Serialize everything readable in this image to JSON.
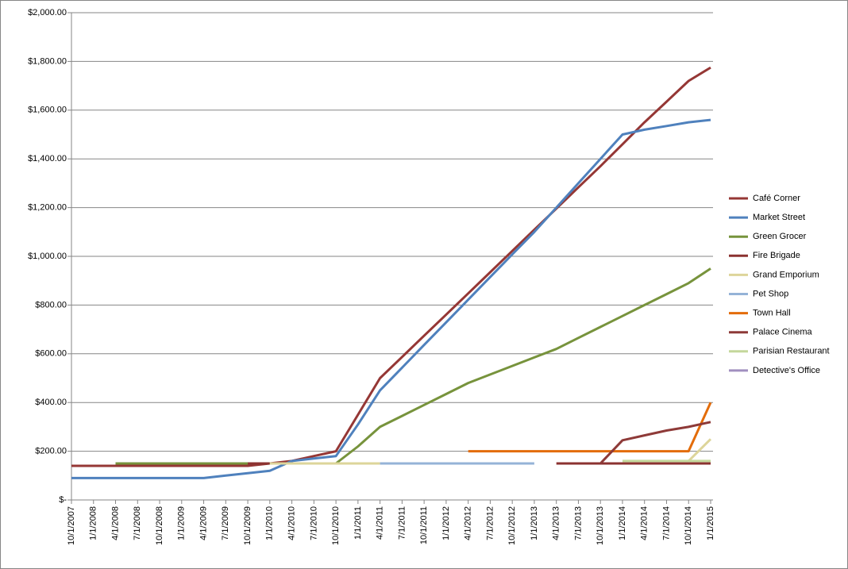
{
  "chart_data": {
    "type": "line",
    "categories": [
      "10/1/2007",
      "1/1/2008",
      "4/1/2008",
      "7/1/2008",
      "10/1/2008",
      "1/1/2009",
      "4/1/2009",
      "7/1/2009",
      "10/1/2009",
      "1/1/2010",
      "4/1/2010",
      "7/1/2010",
      "10/1/2010",
      "1/1/2011",
      "4/1/2011",
      "7/1/2011",
      "10/1/2011",
      "1/1/2012",
      "4/1/2012",
      "7/1/2012",
      "10/1/2012",
      "1/1/2013",
      "4/1/2013",
      "7/1/2013",
      "10/1/2013",
      "1/1/2014",
      "4/1/2014",
      "7/1/2014",
      "10/1/2014",
      "1/1/2015"
    ],
    "ylim": [
      0,
      2000
    ],
    "yticks": [
      {
        "value": 0,
        "label": "$-"
      },
      {
        "value": 200,
        "label": "$200.00"
      },
      {
        "value": 400,
        "label": "$400.00"
      },
      {
        "value": 600,
        "label": "$600.00"
      },
      {
        "value": 800,
        "label": "$800.00"
      },
      {
        "value": 1000,
        "label": "$1,000.00"
      },
      {
        "value": 1200,
        "label": "$1,200.00"
      },
      {
        "value": 1400,
        "label": "$1,400.00"
      },
      {
        "value": 1600,
        "label": "$1,600.00"
      },
      {
        "value": 1800,
        "label": "$1,800.00"
      },
      {
        "value": 2000,
        "label": "$2,000.00"
      }
    ],
    "grid": true,
    "legend": "right",
    "series": [
      {
        "name": "Café Corner",
        "color": "#953735",
        "values": [
          140,
          140,
          140,
          140,
          140,
          140,
          140,
          140,
          140,
          150,
          160,
          180,
          200,
          350,
          500,
          587,
          674,
          761,
          848,
          935,
          1022,
          1109,
          1196,
          1283,
          1370,
          1460,
          1550,
          1635,
          1720,
          1775
        ]
      },
      {
        "name": "Market Street",
        "color": "#4f81bd",
        "values": [
          90,
          90,
          90,
          90,
          90,
          90,
          90,
          100,
          110,
          120,
          160,
          170,
          180,
          310,
          450,
          543,
          636,
          729,
          822,
          915,
          1008,
          1100,
          1200,
          1300,
          1400,
          1500,
          1520,
          1535,
          1550,
          1560
        ]
      },
      {
        "name": "Green Grocer",
        "color": "#77933c",
        "values": [
          null,
          null,
          150,
          150,
          150,
          150,
          150,
          150,
          150,
          150,
          150,
          150,
          150,
          220,
          300,
          345,
          390,
          435,
          480,
          515,
          550,
          585,
          620,
          665,
          710,
          755,
          800,
          845,
          890,
          950
        ]
      },
      {
        "name": "Fire Brigade",
        "color": "#8b3230",
        "values": [
          null,
          null,
          null,
          null,
          null,
          null,
          null,
          null,
          150,
          150,
          null,
          null,
          null,
          null,
          null,
          null,
          null,
          null,
          null,
          null,
          null,
          null,
          150,
          150,
          150,
          150,
          150,
          150,
          150,
          150
        ]
      },
      {
        "name": "Grand Emporium",
        "color": "#ddd59a",
        "values": [
          null,
          null,
          null,
          null,
          null,
          null,
          null,
          null,
          null,
          150,
          150,
          150,
          150,
          150,
          150,
          null,
          null,
          null,
          null,
          null,
          null,
          null,
          null,
          null,
          null,
          null,
          null,
          null,
          160,
          250
        ]
      },
      {
        "name": "Pet Shop",
        "color": "#95b3d7",
        "values": [
          null,
          null,
          null,
          null,
          null,
          null,
          null,
          null,
          null,
          null,
          null,
          null,
          null,
          null,
          150,
          150,
          150,
          150,
          150,
          150,
          150,
          150,
          null,
          null,
          null,
          null,
          null,
          null,
          null,
          null
        ]
      },
      {
        "name": "Town Hall",
        "color": "#e36c09",
        "values": [
          null,
          null,
          null,
          null,
          null,
          null,
          null,
          null,
          null,
          null,
          null,
          null,
          null,
          null,
          null,
          null,
          null,
          null,
          200,
          200,
          200,
          200,
          200,
          200,
          200,
          200,
          200,
          200,
          200,
          400
        ]
      },
      {
        "name": "Palace Cinema",
        "color": "#8e3a38",
        "values": [
          null,
          null,
          null,
          null,
          null,
          null,
          null,
          null,
          null,
          null,
          null,
          null,
          null,
          null,
          null,
          null,
          null,
          null,
          null,
          null,
          null,
          null,
          null,
          null,
          150,
          245,
          265,
          285,
          300,
          320
        ]
      },
      {
        "name": "Parisian Restaurant",
        "color": "#c4d79b",
        "values": [
          null,
          null,
          null,
          null,
          null,
          null,
          null,
          null,
          null,
          null,
          null,
          null,
          null,
          null,
          null,
          null,
          null,
          null,
          null,
          null,
          null,
          null,
          null,
          null,
          null,
          160,
          160,
          160,
          160,
          160
        ]
      },
      {
        "name": "Detective's Office",
        "color": "#a18fbf",
        "values": [
          null,
          null,
          null,
          null,
          null,
          null,
          null,
          null,
          null,
          null,
          null,
          null,
          null,
          null,
          null,
          null,
          null,
          null,
          null,
          null,
          null,
          null,
          null,
          null,
          null,
          null,
          null,
          null,
          null,
          null
        ]
      }
    ]
  }
}
